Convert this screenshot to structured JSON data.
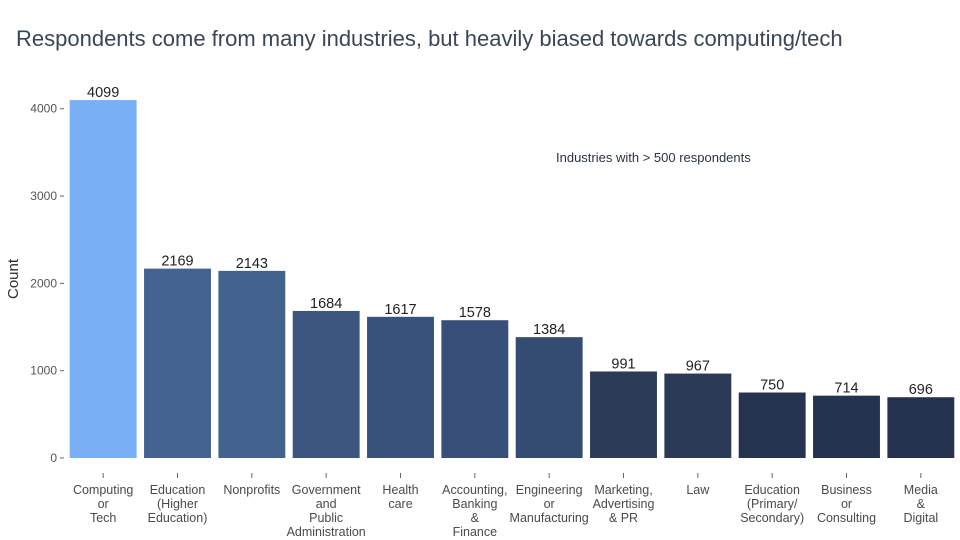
{
  "title": "Respondents come from many industries, but heavily biased towards computing/tech",
  "subtitle": "Industries with > 500 respondents",
  "chart_data": {
    "type": "bar",
    "ylabel": "Count",
    "ylim": [
      0,
      4100
    ],
    "yticks": [
      0,
      1000,
      2000,
      3000,
      4000
    ],
    "grid": false,
    "categories": [
      [
        "Computing",
        "or",
        "Tech"
      ],
      [
        "Education",
        "(Higher",
        "Education)"
      ],
      [
        "Nonprofits"
      ],
      [
        "Government",
        "and",
        "Public",
        "Administration"
      ],
      [
        "Health",
        "care"
      ],
      [
        "Accounting,",
        "Banking",
        "&",
        "Finance"
      ],
      [
        "Engineering",
        "or",
        "Manufacturing"
      ],
      [
        "Marketing,",
        "Advertising",
        "& PR"
      ],
      [
        "Law"
      ],
      [
        "Education",
        "(Primary/",
        "Secondary)"
      ],
      [
        "Business",
        "or",
        "Consulting"
      ],
      [
        "Media",
        "&",
        "Digital"
      ]
    ],
    "values": [
      4099,
      2169,
      2143,
      1684,
      1617,
      1578,
      1384,
      991,
      967,
      750,
      714,
      696
    ],
    "data_labels": [
      "4099",
      "2169",
      "2143",
      "1684",
      "1617",
      "1578",
      "1384",
      "991",
      "967",
      "750",
      "714",
      "696"
    ],
    "colors": [
      "#78aff5",
      "#45638f",
      "#43618d",
      "#3b557f",
      "#39527b",
      "#385079",
      "#344b72",
      "#2b3b58",
      "#2a3a57",
      "#273450",
      "#26334e",
      "#25324d"
    ]
  }
}
